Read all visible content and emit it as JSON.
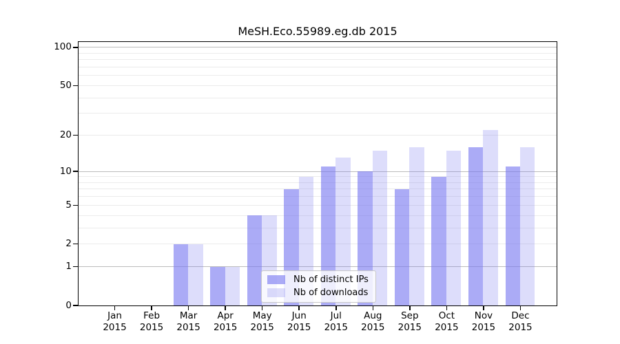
{
  "title": "MeSH.Eco.55989.eg.db 2015",
  "chart_data": {
    "type": "bar",
    "scale": "log1p",
    "grid": "on",
    "title": "MeSH.Eco.55989.eg.db 2015",
    "categories": [
      "Jan",
      "Feb",
      "Mar",
      "Apr",
      "May",
      "Jun",
      "Jul",
      "Aug",
      "Sep",
      "Oct",
      "Nov",
      "Dec"
    ],
    "year_label": "2015",
    "series": [
      {
        "name": "Nb of distinct IPs",
        "color": "rgba(120,120,240,0.62)",
        "values": [
          0,
          0,
          2,
          1,
          4,
          7,
          11,
          10,
          7,
          9,
          16,
          11
        ]
      },
      {
        "name": "Nb of downloads",
        "color": "rgba(120,120,240,0.25)",
        "values": [
          0,
          0,
          2,
          1,
          4,
          9,
          13,
          15,
          16,
          15,
          22,
          16
        ]
      }
    ],
    "ylim": [
      0,
      100
    ],
    "yticks": [
      0,
      1,
      2,
      5,
      10,
      20,
      50,
      100
    ],
    "major_gridlines": [
      1,
      10,
      100
    ],
    "minor_gridlines": [
      2,
      3,
      4,
      5,
      6,
      7,
      8,
      9,
      20,
      30,
      40,
      50,
      60,
      70,
      80,
      90
    ],
    "legend_position": "bottom-center"
  },
  "colors": {
    "axis": "#000000",
    "major_grid": "#bcbcbc",
    "minor_grid": "#ebebeb",
    "legend_bg": "rgba(255,255,255,0.8)",
    "legend_border": "#c8c8c8"
  }
}
